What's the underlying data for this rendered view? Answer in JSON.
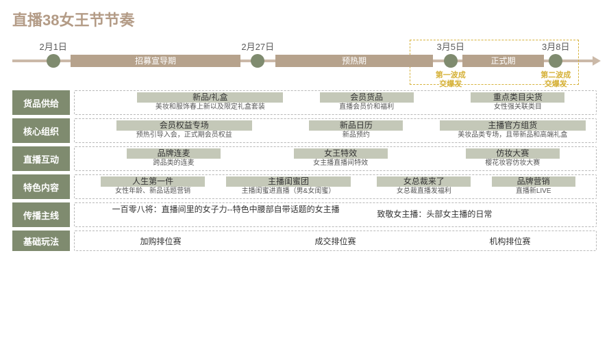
{
  "title": "直播38女王节节奏",
  "colors": {
    "title": "#b39b86",
    "axis": "#cbb9a8",
    "segment": "#b6a28c",
    "dot": "#7f8b6f",
    "rowLabelBg": "#7f8b6f",
    "itemTitleBg": "#c4c8b8",
    "dashBorder": "#b8b8b8",
    "highlight": "#d6b23a"
  },
  "timeline": {
    "dates": [
      {
        "label": "2月1日",
        "pct": 7
      },
      {
        "label": "2月27日",
        "pct": 42
      },
      {
        "label": "3月5日",
        "pct": 75
      },
      {
        "label": "3月8日",
        "pct": 93
      }
    ],
    "segments": [
      {
        "label": "招募宣导期",
        "left_pct": 10,
        "width_pct": 29
      },
      {
        "label": "预热期",
        "left_pct": 45,
        "width_pct": 27
      },
      {
        "label": "正式期",
        "left_pct": 77,
        "width_pct": 14
      }
    ],
    "highlight_box": {
      "left_pct": 68,
      "width_pct": 29
    },
    "bursts": [
      {
        "line1": "第一波成",
        "line2": "交爆发",
        "pct": 75
      },
      {
        "line1": "第二波成",
        "line2": "交爆发",
        "pct": 93
      }
    ]
  },
  "rows": [
    {
      "label": "货品供给",
      "items": [
        {
          "title": "新品/礼盒",
          "sub": "美妆和服饰春上新以及限定礼盒套装",
          "left_pct": 12,
          "width_pct": 28
        },
        {
          "title": "会员货品",
          "sub": "直播会员价和福利",
          "left_pct": 47,
          "width_pct": 18
        },
        {
          "title": "重点类目尖货",
          "sub": "女性强关联类目",
          "left_pct": 76,
          "width_pct": 18
        }
      ]
    },
    {
      "label": "核心组织",
      "items": [
        {
          "title": "会员权益专场",
          "sub": "预热引导入会，正式期会员权益",
          "left_pct": 8,
          "width_pct": 26
        },
        {
          "title": "新品日历",
          "sub": "新品预约",
          "left_pct": 45,
          "width_pct": 18
        },
        {
          "title": "主播官方组货",
          "sub": "美妆品类专场，且带新品和高端礼盒",
          "left_pct": 70,
          "width_pct": 28
        }
      ]
    },
    {
      "label": "直播互动",
      "items": [
        {
          "title": "品牌连麦",
          "sub": "跨品类的连麦",
          "left_pct": 10,
          "width_pct": 18
        },
        {
          "title": "女王特效",
          "sub": "女主播直播间特效",
          "left_pct": 42,
          "width_pct": 18
        },
        {
          "title": "仿妆大赛",
          "sub": "樱花妆容仿妆大赛",
          "left_pct": 75,
          "width_pct": 18
        }
      ]
    },
    {
      "label": "特色内容",
      "items": [
        {
          "title": "人生第一件",
          "sub": "女性年龄、新品话题营销",
          "left_pct": 5,
          "width_pct": 20
        },
        {
          "title": "主播闺蜜团",
          "sub": "主播闺蜜进直播（男&女闺蜜）",
          "left_pct": 29,
          "width_pct": 24
        },
        {
          "title": "女总裁来了",
          "sub": "女总裁直播发福利",
          "left_pct": 58,
          "width_pct": 18
        },
        {
          "title": "品牌营销",
          "sub": "直播新LIVE",
          "left_pct": 80,
          "width_pct": 16
        }
      ]
    }
  ],
  "row_plain": {
    "label": "传播主线",
    "texts": [
      {
        "text": "一百零八将：直播间里的女子力--特色中腰部自带话题的女主播",
        "left_pct": 6,
        "multiline": true
      },
      {
        "text": "致敬女主播：头部女主播的日常",
        "left_pct": 58
      }
    ]
  },
  "row_bottom": {
    "label": "基础玩法",
    "halves": [
      {
        "text": "加购排位赛",
        "left_pct": 0,
        "width_pct": 33
      },
      {
        "text": "成交排位赛",
        "left_pct": 33,
        "width_pct": 34
      },
      {
        "text": "机构排位赛",
        "left_pct": 67,
        "width_pct": 33
      }
    ]
  }
}
